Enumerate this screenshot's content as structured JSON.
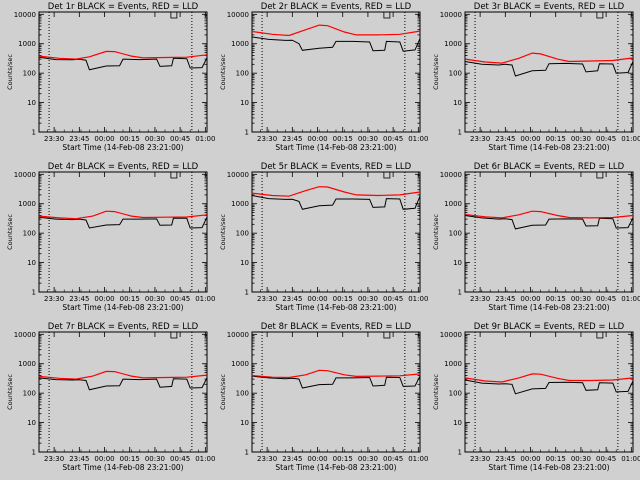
{
  "chart_data": {
    "type": "line",
    "common": {
      "xlabel": "Start Time (14-Feb-08 23:21:00)",
      "ylabel": "Counts/sec",
      "x_tick_labels": [
        "23:30",
        "23:45",
        "00:00",
        "00:15",
        "00:30",
        "00:45",
        "01:00"
      ],
      "x_ticks_min": [
        9,
        24,
        39,
        54,
        69,
        84,
        99
      ],
      "xlim_min": [
        0,
        100
      ],
      "y_scale": "log",
      "ylim": [
        1,
        12000
      ],
      "y_tick_labels": [
        "1",
        "10",
        "100",
        "1000",
        "10000"
      ],
      "y_tick_values": [
        1,
        10,
        100,
        1000,
        10000
      ],
      "vertical_dotted_lines_min": [
        6,
        91
      ],
      "series_colors": {
        "events": "#000000",
        "lld": "#ff0000"
      }
    },
    "panels": [
      {
        "title": "Det 1r BLACK = Events, RED = LLD",
        "events": [
          [
            0,
            350
          ],
          [
            10,
            290
          ],
          [
            20,
            285
          ],
          [
            24,
            295
          ],
          [
            28,
            275
          ],
          [
            30,
            130
          ],
          [
            40,
            175
          ],
          [
            48,
            180
          ],
          [
            50,
            300
          ],
          [
            60,
            290
          ],
          [
            70,
            300
          ],
          [
            72,
            170
          ],
          [
            79,
            178
          ],
          [
            80,
            320
          ],
          [
            88,
            310
          ],
          [
            90,
            150
          ],
          [
            97,
            155
          ],
          [
            100,
            330
          ]
        ],
        "lld": [
          [
            0,
            380
          ],
          [
            12,
            320
          ],
          [
            22,
            300
          ],
          [
            30,
            360
          ],
          [
            40,
            550
          ],
          [
            45,
            540
          ],
          [
            55,
            380
          ],
          [
            62,
            330
          ],
          [
            75,
            340
          ],
          [
            88,
            350
          ],
          [
            100,
            420
          ]
        ]
      },
      {
        "title": "Det 2r BLACK = Events, RED = LLD",
        "events": [
          [
            0,
            1700
          ],
          [
            10,
            1400
          ],
          [
            20,
            1300
          ],
          [
            24,
            1320
          ],
          [
            28,
            1000
          ],
          [
            30,
            600
          ],
          [
            40,
            700
          ],
          [
            48,
            760
          ],
          [
            50,
            1200
          ],
          [
            60,
            1200
          ],
          [
            70,
            1150
          ],
          [
            72,
            580
          ],
          [
            79,
            600
          ],
          [
            80,
            1200
          ],
          [
            88,
            1150
          ],
          [
            90,
            560
          ],
          [
            97,
            620
          ],
          [
            100,
            1500
          ]
        ],
        "lld": [
          [
            0,
            2600
          ],
          [
            12,
            2100
          ],
          [
            22,
            1900
          ],
          [
            32,
            3000
          ],
          [
            40,
            4300
          ],
          [
            45,
            4100
          ],
          [
            55,
            2500
          ],
          [
            62,
            2000
          ],
          [
            75,
            2000
          ],
          [
            88,
            2100
          ],
          [
            100,
            2700
          ]
        ]
      },
      {
        "title": "Det 3r BLACK = Events, RED = LLD",
        "events": [
          [
            0,
            250
          ],
          [
            10,
            200
          ],
          [
            20,
            190
          ],
          [
            24,
            200
          ],
          [
            28,
            190
          ],
          [
            30,
            80
          ],
          [
            40,
            120
          ],
          [
            48,
            125
          ],
          [
            50,
            210
          ],
          [
            60,
            215
          ],
          [
            70,
            205
          ],
          [
            72,
            110
          ],
          [
            79,
            120
          ],
          [
            80,
            210
          ],
          [
            88,
            205
          ],
          [
            90,
            100
          ],
          [
            97,
            105
          ],
          [
            100,
            250
          ]
        ],
        "lld": [
          [
            0,
            300
          ],
          [
            12,
            240
          ],
          [
            22,
            220
          ],
          [
            32,
            320
          ],
          [
            40,
            480
          ],
          [
            45,
            450
          ],
          [
            55,
            300
          ],
          [
            62,
            250
          ],
          [
            75,
            260
          ],
          [
            88,
            270
          ],
          [
            100,
            330
          ]
        ]
      },
      {
        "title": "Det 4r BLACK = Events, RED = LLD",
        "events": [
          [
            0,
            350
          ],
          [
            10,
            300
          ],
          [
            20,
            290
          ],
          [
            24,
            300
          ],
          [
            28,
            280
          ],
          [
            30,
            150
          ],
          [
            40,
            190
          ],
          [
            48,
            195
          ],
          [
            50,
            300
          ],
          [
            60,
            300
          ],
          [
            70,
            305
          ],
          [
            72,
            185
          ],
          [
            79,
            190
          ],
          [
            80,
            325
          ],
          [
            88,
            320
          ],
          [
            90,
            150
          ],
          [
            97,
            155
          ],
          [
            100,
            350
          ]
        ],
        "lld": [
          [
            0,
            380
          ],
          [
            12,
            330
          ],
          [
            22,
            310
          ],
          [
            32,
            380
          ],
          [
            40,
            560
          ],
          [
            45,
            540
          ],
          [
            55,
            380
          ],
          [
            62,
            340
          ],
          [
            75,
            350
          ],
          [
            88,
            355
          ],
          [
            100,
            420
          ]
        ]
      },
      {
        "title": "Det 5r BLACK = Events, RED = LLD",
        "events": [
          [
            0,
            1900
          ],
          [
            10,
            1500
          ],
          [
            20,
            1400
          ],
          [
            24,
            1420
          ],
          [
            28,
            1200
          ],
          [
            30,
            650
          ],
          [
            40,
            850
          ],
          [
            48,
            900
          ],
          [
            50,
            1450
          ],
          [
            60,
            1450
          ],
          [
            70,
            1400
          ],
          [
            72,
            750
          ],
          [
            79,
            780
          ],
          [
            80,
            1500
          ],
          [
            88,
            1450
          ],
          [
            90,
            650
          ],
          [
            97,
            700
          ],
          [
            100,
            1800
          ]
        ],
        "lld": [
          [
            0,
            2300
          ],
          [
            12,
            1900
          ],
          [
            22,
            1800
          ],
          [
            32,
            2800
          ],
          [
            40,
            3800
          ],
          [
            45,
            3700
          ],
          [
            55,
            2500
          ],
          [
            62,
            2000
          ],
          [
            75,
            1900
          ],
          [
            88,
            2000
          ],
          [
            100,
            2500
          ]
        ]
      },
      {
        "title": "Det 6r BLACK = Events, RED = LLD",
        "events": [
          [
            0,
            400
          ],
          [
            10,
            330
          ],
          [
            20,
            300
          ],
          [
            24,
            310
          ],
          [
            28,
            290
          ],
          [
            30,
            140
          ],
          [
            40,
            185
          ],
          [
            48,
            190
          ],
          [
            50,
            300
          ],
          [
            60,
            305
          ],
          [
            70,
            300
          ],
          [
            72,
            175
          ],
          [
            79,
            180
          ],
          [
            80,
            320
          ],
          [
            88,
            310
          ],
          [
            90,
            150
          ],
          [
            97,
            155
          ],
          [
            100,
            330
          ]
        ],
        "lld": [
          [
            0,
            430
          ],
          [
            12,
            360
          ],
          [
            22,
            330
          ],
          [
            32,
            420
          ],
          [
            40,
            560
          ],
          [
            45,
            540
          ],
          [
            55,
            400
          ],
          [
            62,
            340
          ],
          [
            75,
            330
          ],
          [
            88,
            340
          ],
          [
            100,
            400
          ]
        ]
      },
      {
        "title": "Det 7r BLACK = Events, RED = LLD",
        "events": [
          [
            0,
            330
          ],
          [
            10,
            290
          ],
          [
            20,
            280
          ],
          [
            24,
            285
          ],
          [
            28,
            270
          ],
          [
            30,
            130
          ],
          [
            40,
            175
          ],
          [
            48,
            180
          ],
          [
            50,
            300
          ],
          [
            60,
            290
          ],
          [
            70,
            300
          ],
          [
            72,
            160
          ],
          [
            79,
            170
          ],
          [
            80,
            310
          ],
          [
            88,
            300
          ],
          [
            90,
            150
          ],
          [
            97,
            155
          ],
          [
            100,
            330
          ]
        ],
        "lld": [
          [
            0,
            370
          ],
          [
            12,
            320
          ],
          [
            22,
            300
          ],
          [
            32,
            380
          ],
          [
            40,
            550
          ],
          [
            45,
            540
          ],
          [
            55,
            380
          ],
          [
            62,
            330
          ],
          [
            75,
            340
          ],
          [
            88,
            350
          ],
          [
            100,
            410
          ]
        ]
      },
      {
        "title": "Det 8r BLACK = Events, RED = LLD",
        "events": [
          [
            0,
            380
          ],
          [
            10,
            330
          ],
          [
            20,
            310
          ],
          [
            24,
            320
          ],
          [
            28,
            300
          ],
          [
            30,
            150
          ],
          [
            40,
            195
          ],
          [
            48,
            200
          ],
          [
            50,
            330
          ],
          [
            60,
            330
          ],
          [
            70,
            340
          ],
          [
            72,
            175
          ],
          [
            79,
            185
          ],
          [
            80,
            350
          ],
          [
            88,
            340
          ],
          [
            90,
            170
          ],
          [
            97,
            175
          ],
          [
            100,
            380
          ]
        ],
        "lld": [
          [
            0,
            400
          ],
          [
            12,
            350
          ],
          [
            22,
            340
          ],
          [
            32,
            420
          ],
          [
            40,
            600
          ],
          [
            45,
            580
          ],
          [
            55,
            420
          ],
          [
            62,
            370
          ],
          [
            75,
            380
          ],
          [
            88,
            390
          ],
          [
            100,
            450
          ]
        ]
      },
      {
        "title": "Det 9r BLACK = Events, RED = LLD",
        "events": [
          [
            0,
            280
          ],
          [
            10,
            220
          ],
          [
            20,
            205
          ],
          [
            24,
            210
          ],
          [
            28,
            200
          ],
          [
            30,
            95
          ],
          [
            40,
            140
          ],
          [
            48,
            145
          ],
          [
            50,
            230
          ],
          [
            60,
            235
          ],
          [
            70,
            225
          ],
          [
            72,
            125
          ],
          [
            79,
            130
          ],
          [
            80,
            225
          ],
          [
            88,
            220
          ],
          [
            90,
            110
          ],
          [
            97,
            115
          ],
          [
            100,
            260
          ]
        ],
        "lld": [
          [
            0,
            330
          ],
          [
            12,
            260
          ],
          [
            22,
            240
          ],
          [
            32,
            330
          ],
          [
            40,
            450
          ],
          [
            45,
            440
          ],
          [
            55,
            320
          ],
          [
            62,
            270
          ],
          [
            75,
            270
          ],
          [
            88,
            280
          ],
          [
            100,
            330
          ]
        ]
      }
    ]
  }
}
